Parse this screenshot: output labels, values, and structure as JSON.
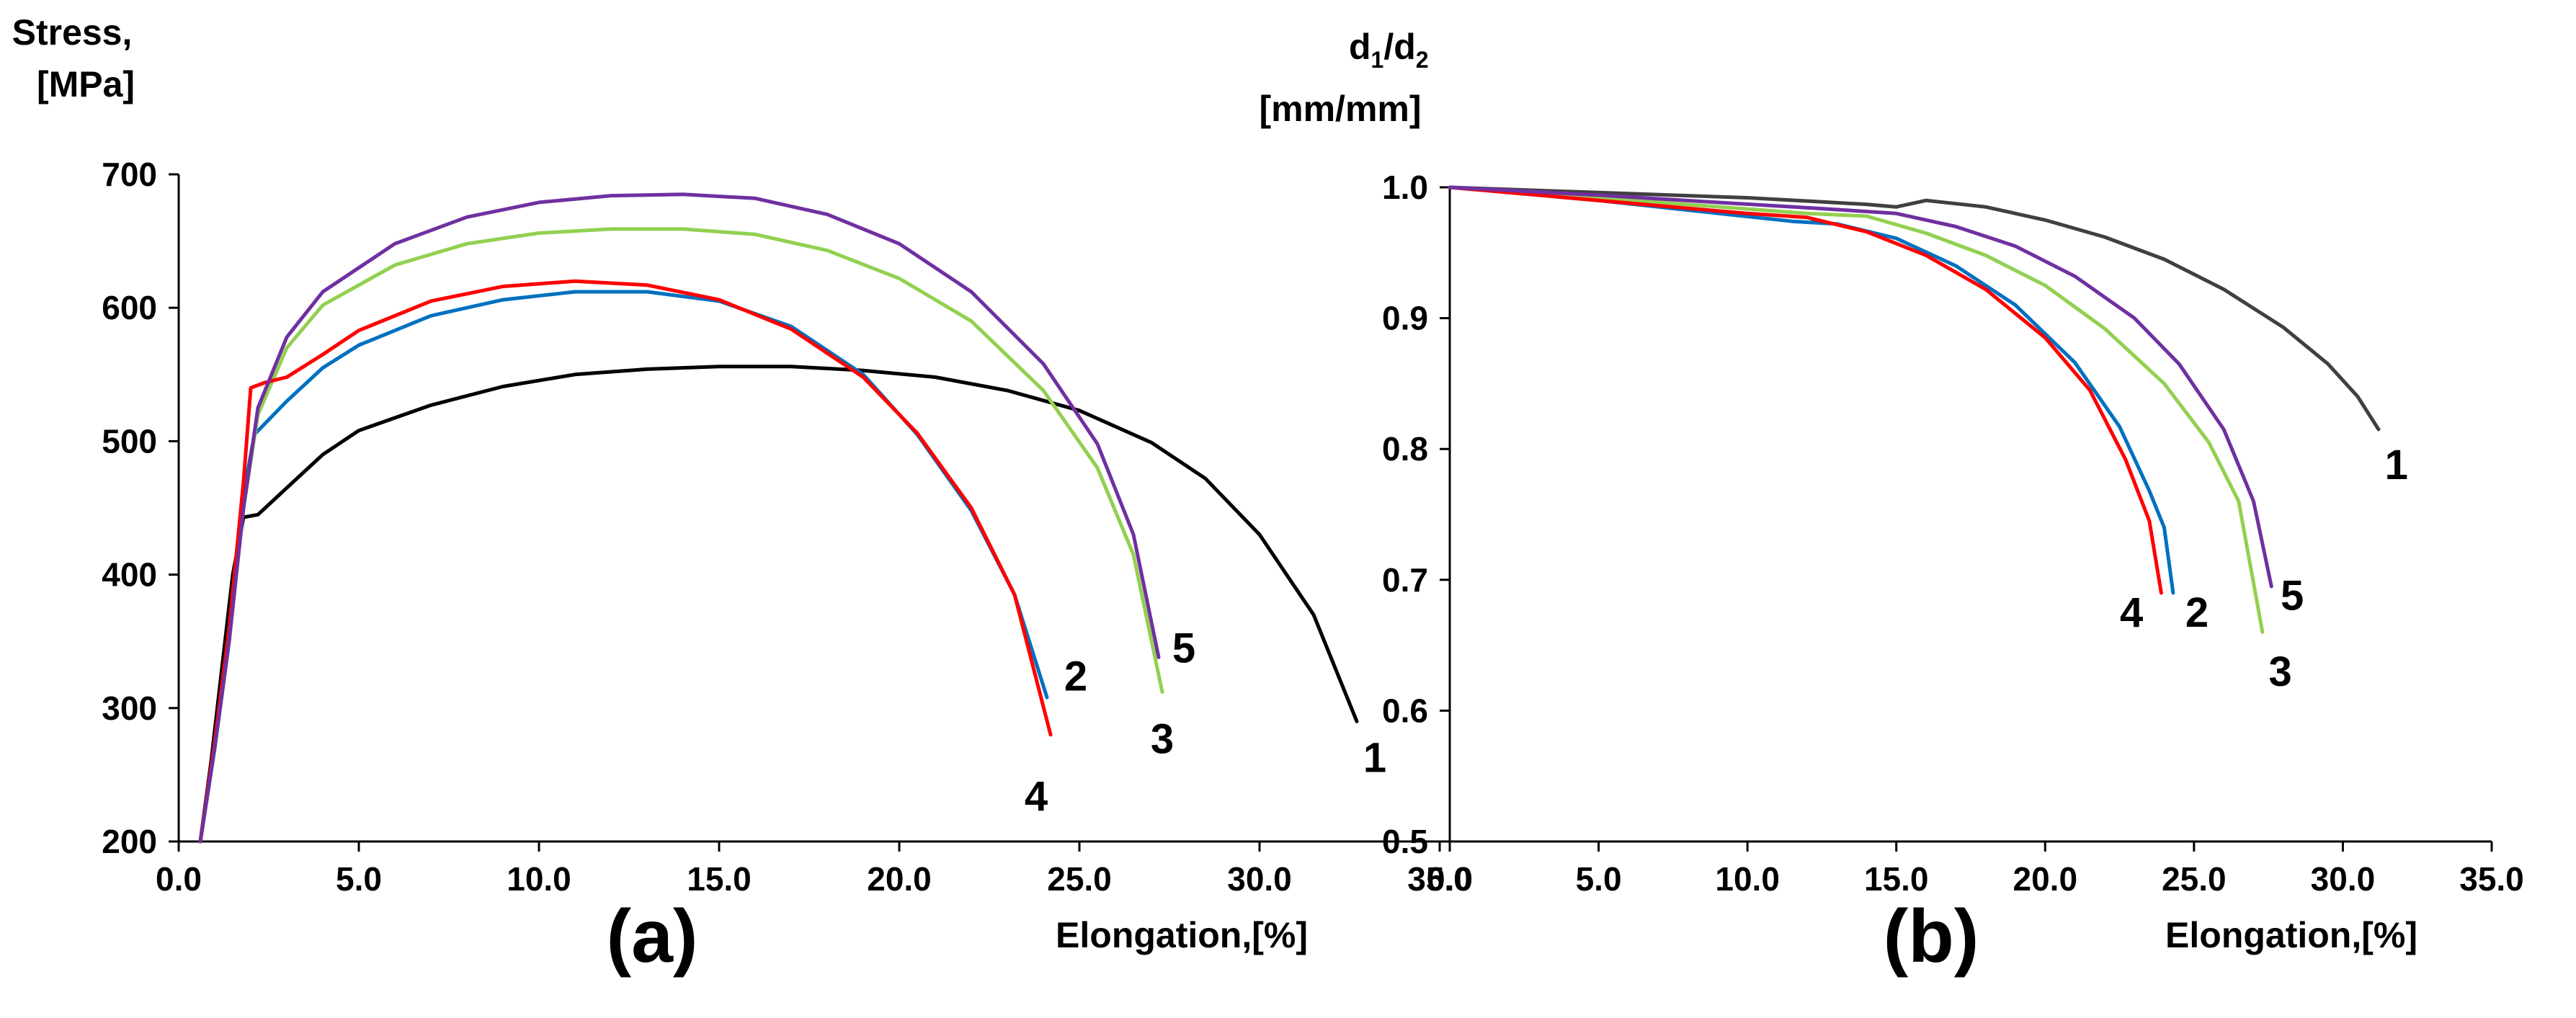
{
  "colors": {
    "black": "#000000",
    "gray": "#404040",
    "red": "#ff0000",
    "blue": "#0070c0",
    "green": "#92d050",
    "purple": "#7030a0"
  },
  "chart_data": [
    {
      "type": "line",
      "panel_label": "(a)",
      "xlabel": "Elongation,[%]",
      "ylabel_line1": "Stress,",
      "ylabel_line2": "[MPa]",
      "xlim": [
        0,
        35
      ],
      "ylim": [
        200,
        700
      ],
      "x_ticks": [
        "0.0",
        "5.0",
        "10.0",
        "15.0",
        "20.0",
        "25.0",
        "30.0",
        "35.0"
      ],
      "y_ticks": [
        "200",
        "300",
        "400",
        "500",
        "600",
        "700"
      ],
      "grid": false,
      "series": [
        {
          "name": "1",
          "color": "#000000",
          "label_at": [
            33.2,
            263
          ],
          "points": [
            [
              0.6,
              200
            ],
            [
              0.9,
              260
            ],
            [
              1.2,
              330
            ],
            [
              1.5,
              400
            ],
            [
              1.8,
              443
            ],
            [
              2.2,
              445
            ],
            [
              3,
              465
            ],
            [
              4,
              490
            ],
            [
              5,
              508
            ],
            [
              7,
              527
            ],
            [
              9,
              541
            ],
            [
              11,
              550
            ],
            [
              13,
              554
            ],
            [
              15,
              556
            ],
            [
              17,
              556
            ],
            [
              19,
              553
            ],
            [
              21,
              548
            ],
            [
              23,
              538
            ],
            [
              25,
              523
            ],
            [
              27,
              499
            ],
            [
              28.5,
              472
            ],
            [
              30,
              430
            ],
            [
              31.5,
              370
            ],
            [
              32.7,
              290
            ]
          ]
        },
        {
          "name": "2",
          "color": "#0070c0",
          "label_at": [
            24.9,
            324
          ],
          "points": [
            [
              0.6,
              200
            ],
            [
              1,
              270
            ],
            [
              1.4,
              350
            ],
            [
              1.8,
              460
            ],
            [
              2.1,
              505
            ],
            [
              3,
              530
            ],
            [
              4,
              555
            ],
            [
              5,
              572
            ],
            [
              7,
              594
            ],
            [
              9,
              606
            ],
            [
              11,
              612
            ],
            [
              13,
              612
            ],
            [
              15,
              605
            ],
            [
              17,
              586
            ],
            [
              19,
              550
            ],
            [
              20.5,
              505
            ],
            [
              22,
              448
            ],
            [
              23.2,
              385
            ],
            [
              24.1,
              308
            ]
          ]
        },
        {
          "name": "3",
          "color": "#92d050",
          "label_at": [
            27.3,
            277
          ],
          "points": [
            [
              0.6,
              200
            ],
            [
              1,
              270
            ],
            [
              1.4,
              350
            ],
            [
              1.8,
              450
            ],
            [
              2.2,
              520
            ],
            [
              3,
              570
            ],
            [
              4,
              602
            ],
            [
              6,
              632
            ],
            [
              8,
              648
            ],
            [
              10,
              656
            ],
            [
              12,
              659
            ],
            [
              14,
              659
            ],
            [
              16,
              655
            ],
            [
              18,
              643
            ],
            [
              20,
              622
            ],
            [
              22,
              590
            ],
            [
              24,
              538
            ],
            [
              25.5,
              480
            ],
            [
              26.5,
              415
            ],
            [
              27.3,
              312
            ]
          ]
        },
        {
          "name": "4",
          "color": "#ff0000",
          "label_at": [
            23.8,
            234
          ],
          "points": [
            [
              0.6,
              200
            ],
            [
              1,
              275
            ],
            [
              1.4,
              360
            ],
            [
              1.8,
              470
            ],
            [
              2,
              540
            ],
            [
              2.4,
              544
            ],
            [
              3,
              548
            ],
            [
              4,
              565
            ],
            [
              5,
              583
            ],
            [
              7,
              605
            ],
            [
              9,
              616
            ],
            [
              11,
              620
            ],
            [
              13,
              617
            ],
            [
              15,
              606
            ],
            [
              17,
              584
            ],
            [
              19,
              548
            ],
            [
              20.5,
              506
            ],
            [
              22,
              450
            ],
            [
              23.2,
              385
            ],
            [
              24.2,
              280
            ]
          ]
        },
        {
          "name": "5",
          "color": "#7030a0",
          "label_at": [
            27.9,
            345
          ],
          "points": [
            [
              0.6,
              200
            ],
            [
              1,
              270
            ],
            [
              1.4,
              350
            ],
            [
              1.8,
              450
            ],
            [
              2.2,
              525
            ],
            [
              3,
              578
            ],
            [
              4,
              612
            ],
            [
              6,
              648
            ],
            [
              8,
              668
            ],
            [
              10,
              679
            ],
            [
              12,
              684
            ],
            [
              14,
              685
            ],
            [
              16,
              682
            ],
            [
              18,
              670
            ],
            [
              20,
              648
            ],
            [
              22,
              612
            ],
            [
              24,
              558
            ],
            [
              25.5,
              498
            ],
            [
              26.5,
              430
            ],
            [
              27.2,
              338
            ]
          ]
        }
      ]
    },
    {
      "type": "line",
      "panel_label": "(b)",
      "xlabel": "Elongation,[%]",
      "ylabel_line1": "d1/d2",
      "ylabel_line2": "[mm/mm]",
      "xlim": [
        0,
        35
      ],
      "ylim": [
        0.5,
        1.0
      ],
      "x_ticks": [
        "0.0",
        "5.0",
        "10.0",
        "15.0",
        "20.0",
        "25.0",
        "30.0",
        "35.0"
      ],
      "y_ticks": [
        "0.5",
        "0.6",
        "0.7",
        "0.8",
        "0.9",
        "1.0"
      ],
      "grid": false,
      "series": [
        {
          "name": "1",
          "color": "#404040",
          "label_at": [
            31.8,
            0.788
          ],
          "points": [
            [
              0,
              1.0
            ],
            [
              5,
              0.996
            ],
            [
              10,
              0.992
            ],
            [
              14,
              0.987
            ],
            [
              15,
              0.985
            ],
            [
              16,
              0.99
            ],
            [
              18,
              0.985
            ],
            [
              20,
              0.975
            ],
            [
              22,
              0.962
            ],
            [
              24,
              0.945
            ],
            [
              26,
              0.922
            ],
            [
              28,
              0.893
            ],
            [
              29.5,
              0.865
            ],
            [
              30.5,
              0.84
            ],
            [
              31.2,
              0.815
            ]
          ]
        },
        {
          "name": "2",
          "color": "#0070c0",
          "label_at": [
            25.1,
            0.675
          ],
          "points": [
            [
              0,
              1.0
            ],
            [
              5,
              0.99
            ],
            [
              11.5,
              0.974
            ],
            [
              13,
              0.972
            ],
            [
              15,
              0.961
            ],
            [
              17,
              0.94
            ],
            [
              19,
              0.91
            ],
            [
              21,
              0.866
            ],
            [
              22.5,
              0.817
            ],
            [
              23.5,
              0.768
            ],
            [
              24,
              0.74
            ],
            [
              24.3,
              0.69
            ]
          ]
        },
        {
          "name": "3",
          "color": "#92d050",
          "label_at": [
            27.9,
            0.63
          ],
          "points": [
            [
              0,
              1.0
            ],
            [
              5,
              0.992
            ],
            [
              12,
              0.98
            ],
            [
              14,
              0.978
            ],
            [
              16,
              0.965
            ],
            [
              18,
              0.948
            ],
            [
              20,
              0.925
            ],
            [
              22,
              0.892
            ],
            [
              24,
              0.85
            ],
            [
              25.5,
              0.805
            ],
            [
              26.5,
              0.76
            ],
            [
              27.3,
              0.66
            ]
          ]
        },
        {
          "name": "4",
          "color": "#ff0000",
          "label_at": [
            22.9,
            0.675
          ],
          "points": [
            [
              0,
              1.0
            ],
            [
              5,
              0.99
            ],
            [
              10,
              0.98
            ],
            [
              12,
              0.977
            ],
            [
              14,
              0.966
            ],
            [
              16,
              0.948
            ],
            [
              18,
              0.922
            ],
            [
              20,
              0.885
            ],
            [
              21.5,
              0.845
            ],
            [
              22.7,
              0.792
            ],
            [
              23.5,
              0.745
            ],
            [
              23.9,
              0.69
            ]
          ]
        },
        {
          "name": "5",
          "color": "#7030a0",
          "label_at": [
            28.3,
            0.688
          ],
          "points": [
            [
              0,
              1.0
            ],
            [
              5,
              0.994
            ],
            [
              13,
              0.983
            ],
            [
              15,
              0.98
            ],
            [
              17,
              0.97
            ],
            [
              19,
              0.955
            ],
            [
              21,
              0.932
            ],
            [
              23,
              0.9
            ],
            [
              24.5,
              0.865
            ],
            [
              26,
              0.815
            ],
            [
              27,
              0.76
            ],
            [
              27.6,
              0.695
            ]
          ]
        }
      ]
    }
  ]
}
